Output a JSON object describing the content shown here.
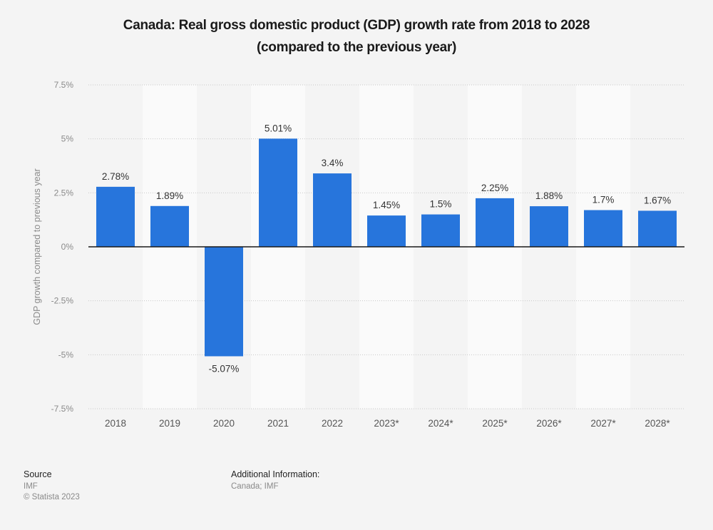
{
  "title_line1": "Canada: Real gross domestic product (GDP) growth rate from 2018 to 2028",
  "title_line2": "(compared to the previous year)",
  "chart_data": {
    "type": "bar",
    "title": "Canada: Real gross domestic product (GDP) growth rate from 2018 to 2028 (compared to the previous year)",
    "xlabel": "",
    "ylabel": "GDP growth compared to previous year",
    "categories": [
      "2018",
      "2019",
      "2020",
      "2021",
      "2022",
      "2023*",
      "2024*",
      "2025*",
      "2026*",
      "2027*",
      "2028*"
    ],
    "values": [
      2.78,
      1.89,
      -5.07,
      5.01,
      3.4,
      1.45,
      1.5,
      2.25,
      1.88,
      1.7,
      1.67
    ],
    "data_labels": [
      "2.78%",
      "1.89%",
      "-5.07%",
      "5.01%",
      "3.4%",
      "1.45%",
      "1.5%",
      "2.25%",
      "1.88%",
      "1.7%",
      "1.67%"
    ],
    "ylim": [
      -7.5,
      7.5
    ],
    "yticks": [
      7.5,
      5,
      2.5,
      0,
      -2.5,
      -5,
      -7.5
    ],
    "ytick_labels": [
      "7.5%",
      "5%",
      "2.5%",
      "0%",
      "-2.5%",
      "-5%",
      "-7.5%"
    ],
    "grid": true,
    "legend": "none",
    "bar_color": "#2775dc",
    "unit": "%"
  },
  "footer": {
    "source_heading": "Source",
    "source_lines": [
      "IMF",
      "© Statista 2023"
    ],
    "additional_heading": "Additional Information:",
    "additional_text": "Canada; IMF"
  }
}
